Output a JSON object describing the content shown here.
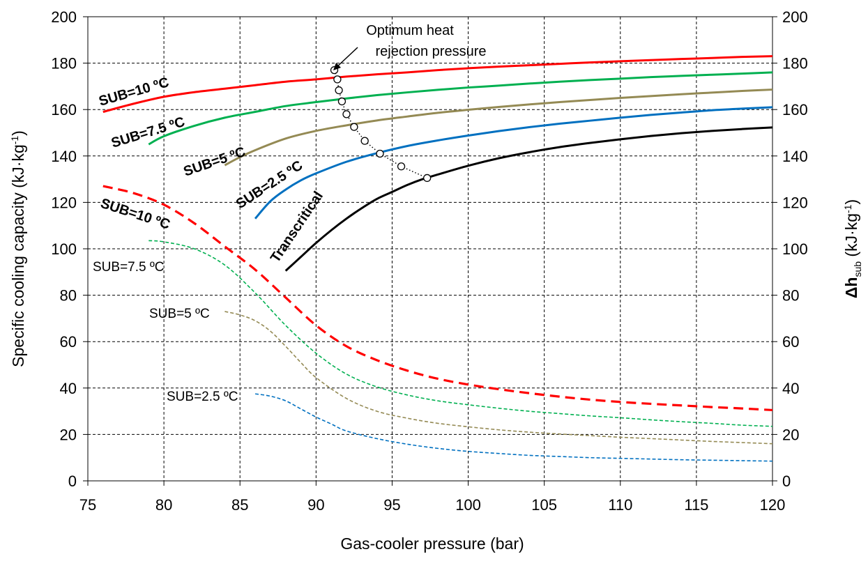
{
  "chart_data": {
    "type": "line",
    "xlabel": "Gas-cooler pressure (bar)",
    "ylabel": "Specific cooling capacity (kJ·kg",
    "ylabel_sup": "-1",
    "ylabel_end": ")",
    "y2label_main": "Δh",
    "y2label_sub": "sub",
    "y2label_rest": " (kJ·kg",
    "y2label_sup": "-1",
    "y2label_end": ")",
    "xlim": [
      75,
      120
    ],
    "ylim": [
      0,
      200
    ],
    "y2lim": [
      0,
      200
    ],
    "x_ticks": [
      75,
      80,
      85,
      90,
      95,
      100,
      105,
      110,
      115,
      120
    ],
    "y_ticks": [
      0,
      20,
      40,
      60,
      80,
      100,
      120,
      140,
      160,
      180,
      200
    ],
    "grid": true,
    "annotation": {
      "line1": "Optimum heat",
      "line2": "rejection pressure"
    },
    "series": [
      {
        "label": "SUB=10 ºC",
        "color": "#ff0000",
        "style": "solid",
        "axis": "left",
        "x": [
          76,
          78,
          80,
          82,
          84,
          86,
          88,
          90,
          92,
          94,
          96,
          98,
          100,
          102,
          104,
          106,
          108,
          110,
          112,
          114,
          116,
          118,
          120
        ],
        "y": [
          159,
          162.5,
          165.5,
          167.5,
          169,
          170.5,
          172,
          173,
          174.2,
          175.2,
          176,
          177,
          177.8,
          178.5,
          179.1,
          179.7,
          180.3,
          180.8,
          181.3,
          181.8,
          182.2,
          182.7,
          183
        ]
      },
      {
        "label": "SUB=7.5 ºC",
        "color": "#00b050",
        "style": "solid",
        "axis": "left",
        "x": [
          79,
          80,
          82,
          84,
          86,
          88,
          90,
          92,
          94,
          96,
          98,
          100,
          102,
          104,
          106,
          108,
          110,
          112,
          114,
          116,
          118,
          120
        ],
        "y": [
          145,
          148.5,
          153,
          156.5,
          159,
          161.5,
          163.2,
          164.8,
          166.2,
          167.4,
          168.5,
          169.5,
          170.3,
          171.2,
          172,
          172.7,
          173.3,
          174,
          174.5,
          175,
          175.5,
          176
        ]
      },
      {
        "label": "SUB=5 ºC",
        "color": "#948a54",
        "style": "solid",
        "axis": "left",
        "x": [
          84,
          85,
          86,
          88,
          90,
          92,
          94,
          96,
          98,
          100,
          102,
          104,
          106,
          108,
          110,
          112,
          114,
          116,
          118,
          120
        ],
        "y": [
          136,
          139.5,
          142.5,
          147.5,
          150.8,
          153.2,
          155.3,
          157,
          158.6,
          159.9,
          161.1,
          162.2,
          163.2,
          164.1,
          165,
          165.8,
          166.6,
          167.3,
          168,
          168.6
        ]
      },
      {
        "label": "SUB=2.5 ºC",
        "color": "#0070c0",
        "style": "solid",
        "axis": "left",
        "x": [
          86,
          87,
          88,
          89,
          90,
          92,
          94,
          96,
          98,
          100,
          102,
          104,
          106,
          108,
          110,
          112,
          114,
          116,
          118,
          120
        ],
        "y": [
          113,
          120.5,
          125.5,
          129.5,
          132.5,
          137.5,
          141.2,
          144.3,
          146.7,
          148.8,
          150.7,
          152.4,
          153.9,
          155.2,
          156.5,
          157.7,
          158.7,
          159.7,
          160.4,
          161
        ]
      },
      {
        "label": "Transcritical",
        "color": "#000000",
        "style": "solid",
        "axis": "left",
        "x": [
          88,
          89,
          90,
          91,
          92,
          93,
          94,
          95,
          96,
          97,
          98,
          100,
          102,
          104,
          106,
          108,
          110,
          112,
          114,
          116,
          118,
          120
        ],
        "y": [
          90.5,
          96.5,
          102.5,
          108,
          113,
          117.5,
          121.5,
          124.5,
          127.5,
          130,
          132,
          135.8,
          139,
          141.6,
          143.8,
          145.6,
          147.2,
          148.6,
          149.8,
          150.8,
          151.6,
          152.3
        ]
      },
      {
        "label": "SUB=10 ºC",
        "color": "#ff0000",
        "style": "dashed-thick",
        "axis": "right",
        "x": [
          76,
          78,
          80,
          82,
          84,
          86,
          88,
          90,
          92,
          94,
          96,
          98,
          100,
          102,
          104,
          106,
          108,
          110,
          112,
          114,
          116,
          118,
          120
        ],
        "y": [
          127,
          124,
          119,
          111,
          101,
          91,
          79,
          67,
          58,
          52,
          47.5,
          44,
          41.5,
          39.5,
          37.8,
          36.3,
          35,
          34,
          33.2,
          32.5,
          31.8,
          31.2,
          30.5
        ]
      },
      {
        "label": "SUB=7.5 ºC",
        "color": "#00b050",
        "style": "dashed",
        "axis": "right",
        "x": [
          79,
          80,
          82,
          84,
          86,
          88,
          90,
          92,
          94,
          96,
          98,
          100,
          102,
          104,
          106,
          108,
          110,
          112,
          114,
          116,
          118,
          120
        ],
        "y": [
          103.5,
          103,
          100,
          93,
          81,
          67,
          55,
          46,
          40.5,
          37,
          34.5,
          32.8,
          31.3,
          30,
          29,
          28,
          27.2,
          26.3,
          25.5,
          24.8,
          24,
          23.5
        ]
      },
      {
        "label": "SUB=5 ºC",
        "color": "#948a54",
        "style": "dashed",
        "axis": "right",
        "x": [
          84,
          85,
          86,
          87,
          88,
          89,
          90,
          92,
          94,
          96,
          98,
          100,
          102,
          104,
          106,
          108,
          110,
          112,
          114,
          116,
          118,
          120
        ],
        "y": [
          73,
          71.5,
          69,
          64.5,
          58,
          51,
          44.5,
          35.5,
          30,
          27,
          24.8,
          23.3,
          22,
          21,
          20.2,
          19.5,
          18.8,
          18.2,
          17.6,
          17,
          16.5,
          16
        ]
      },
      {
        "label": "SUB=2.5 ºC",
        "color": "#0070c0",
        "style": "dashed",
        "axis": "right",
        "x": [
          86,
          87,
          88,
          89,
          90,
          91,
          92,
          94,
          96,
          98,
          100,
          102,
          104,
          106,
          108,
          110,
          112,
          114,
          116,
          118,
          120
        ],
        "y": [
          37.5,
          36.5,
          34.5,
          31,
          27.5,
          24.5,
          21.5,
          18.2,
          15.8,
          14,
          12.7,
          11.8,
          11,
          10.5,
          10,
          9.7,
          9.4,
          9.1,
          8.9,
          8.7,
          8.5
        ]
      },
      {
        "label": "Optimum heat rejection pressure",
        "color": "#000000",
        "style": "dotted-markers",
        "axis": "left",
        "x": [
          91.2,
          91.4,
          91.5,
          91.7,
          92.0,
          92.5,
          93.2,
          94.2,
          95.6,
          97.3
        ],
        "y": [
          177,
          173,
          168.3,
          163.5,
          158,
          152.5,
          146.5,
          141,
          135.5,
          130.5
        ]
      }
    ]
  }
}
